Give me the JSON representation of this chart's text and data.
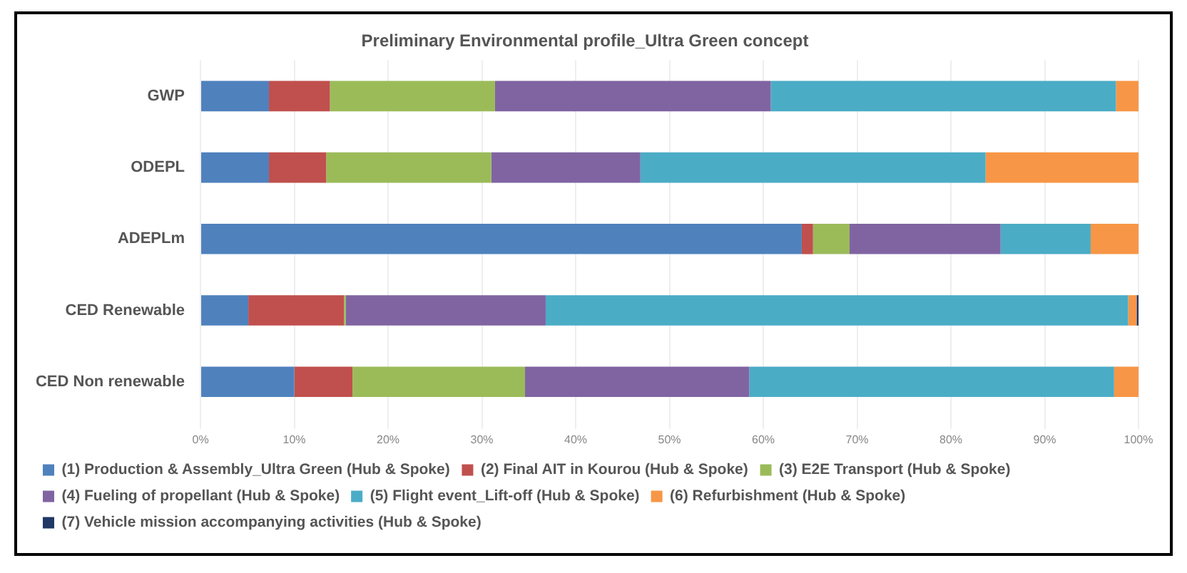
{
  "chart_data": {
    "type": "bar",
    "orientation": "horizontal",
    "stacked": true,
    "title": "Preliminary Environmental profile_Ultra Green concept",
    "categories": [
      "GWP",
      "ODEPL",
      "ADEPLm",
      "CED Renewable",
      "CED Non renewable"
    ],
    "series": [
      {
        "name": "(1) Production & Assembly_Ultra Green (Hub & Spoke)",
        "color": "#4f81bd",
        "values": [
          7.3,
          7.3,
          64.1,
          5.1,
          10.0
        ]
      },
      {
        "name": "(2) Final AIT in Kourou (Hub & Spoke)",
        "color": "#c0504d",
        "values": [
          6.5,
          6.1,
          1.2,
          10.2,
          6.2
        ]
      },
      {
        "name": "(3) E2E Transport (Hub & Spoke)",
        "color": "#9bbb59",
        "values": [
          17.6,
          17.6,
          3.9,
          0.2,
          18.4
        ]
      },
      {
        "name": "(4) Fueling of propellant (Hub & Spoke)",
        "color": "#8064a2",
        "values": [
          29.4,
          15.9,
          16.1,
          21.3,
          23.9
        ]
      },
      {
        "name": "(5) Flight event_Lift-off (Hub & Spoke)",
        "color": "#4bacc6",
        "values": [
          36.8,
          36.8,
          9.6,
          62.1,
          38.9
        ]
      },
      {
        "name": "(6) Refurbishment (Hub & Spoke)",
        "color": "#f79646",
        "values": [
          2.4,
          16.3,
          5.1,
          0.9,
          2.6
        ]
      },
      {
        "name": "(7) Vehicle mission accompanying activities (Hub & Spoke)",
        "color": "#1f3864",
        "values": [
          0,
          0,
          0,
          0.2,
          0
        ]
      }
    ],
    "xlim": [
      0,
      100
    ],
    "xticks": [
      {
        "value": 0,
        "label": "0%"
      },
      {
        "value": 10,
        "label": "10%"
      },
      {
        "value": 20,
        "label": "20%"
      },
      {
        "value": 30,
        "label": "30%"
      },
      {
        "value": 40,
        "label": "40%"
      },
      {
        "value": 50,
        "label": "50%"
      },
      {
        "value": 60,
        "label": "60%"
      },
      {
        "value": 70,
        "label": "70%"
      },
      {
        "value": 80,
        "label": "80%"
      },
      {
        "value": 90,
        "label": "90%"
      },
      {
        "value": 100,
        "label": "100%"
      }
    ],
    "grid": "x",
    "legend": "bottom"
  }
}
